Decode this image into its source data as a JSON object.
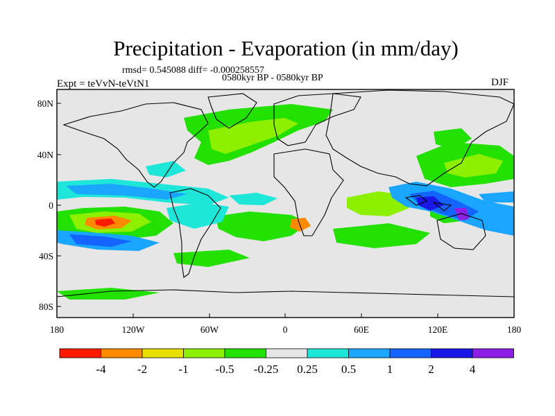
{
  "title": "Precipitation - Evaporation (in mm/day)",
  "stats": "rmsd= 0.545088 diff= -0.000258557",
  "period": "0580kyr BP - 0580kyr BP",
  "experiment": "Expt = teVvN-teVtN1",
  "season": "DJF",
  "lat_ticks": [
    "80N",
    "40N",
    "0",
    "40S",
    "80S"
  ],
  "lon_ticks": [
    "180",
    "120W",
    "60W",
    "0",
    "60E",
    "120E",
    "180"
  ],
  "colorbar": {
    "labels": [
      "-4",
      "-2",
      "-1",
      "-0.5",
      "-0.25",
      "0.25",
      "0.5",
      "1",
      "2",
      "4"
    ],
    "colors": [
      "#ff1a00",
      "#ff8a00",
      "#e8e000",
      "#8cf000",
      "#22e000",
      "#e6e6e6",
      "#1ee6d8",
      "#1aa6ff",
      "#1464ff",
      "#1a18e6",
      "#8c1ee6"
    ]
  },
  "map_background": "#e6e6e6"
}
